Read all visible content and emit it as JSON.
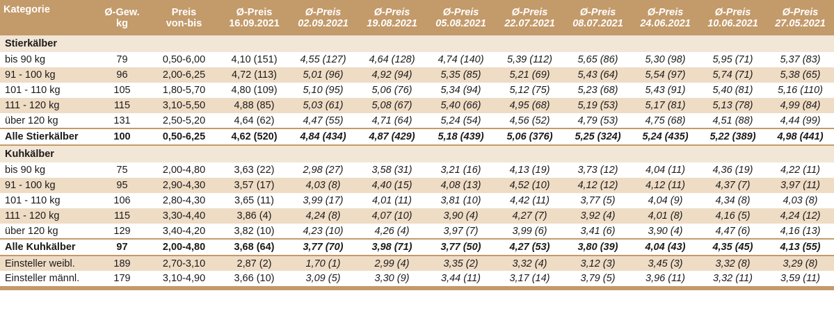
{
  "header": [
    {
      "line1": "Kategorie",
      "line2": "",
      "italic": false
    },
    {
      "line1": "Ø-Gew.",
      "line2": "kg",
      "italic": false
    },
    {
      "line1": "Preis",
      "line2": "von-bis",
      "italic": false
    },
    {
      "line1": "Ø-Preis",
      "line2": "16.09.2021",
      "italic": false
    },
    {
      "line1": "Ø-Preis",
      "line2": "02.09.2021",
      "italic": true
    },
    {
      "line1": "Ø-Preis",
      "line2": "19.08.2021",
      "italic": true
    },
    {
      "line1": "Ø-Preis",
      "line2": "05.08.2021",
      "italic": true
    },
    {
      "line1": "Ø-Preis",
      "line2": "22.07.2021",
      "italic": true
    },
    {
      "line1": "Ø-Preis",
      "line2": "08.07.2021",
      "italic": true
    },
    {
      "line1": "Ø-Preis",
      "line2": "24.06.2021",
      "italic": true
    },
    {
      "line1": "Ø-Preis",
      "line2": "10.06.2021",
      "italic": true
    },
    {
      "line1": "Ø-Preis",
      "line2": "27.05.2021",
      "italic": true
    }
  ],
  "rows": [
    {
      "type": "section",
      "label": "Stierkälber"
    },
    {
      "type": "data",
      "cells": [
        "bis 90 kg",
        "79",
        "0,50-6,00",
        "4,10 (151)",
        "4,55 (127)",
        "4,64 (128)",
        "4,74 (140)",
        "5,39 (112)",
        "5,65 (86)",
        "5,30 (98)",
        "5,95 (71)",
        "5,37 (83)"
      ]
    },
    {
      "type": "data",
      "cells": [
        "91 - 100 kg",
        "96",
        "2,00-6,25",
        "4,72 (113)",
        "5,01 (96)",
        "4,92 (94)",
        "5,35 (85)",
        "5,21 (69)",
        "5,43 (64)",
        "5,54 (97)",
        "5,74 (71)",
        "5,38 (65)"
      ]
    },
    {
      "type": "data",
      "cells": [
        "101 - 110 kg",
        "105",
        "1,80-5,70",
        "4,80 (109)",
        "5,10 (95)",
        "5,06 (76)",
        "5,34 (94)",
        "5,12 (75)",
        "5,23 (68)",
        "5,43 (91)",
        "5,40 (81)",
        "5,16 (110)"
      ]
    },
    {
      "type": "data",
      "cells": [
        "111 - 120 kg",
        "115",
        "3,10-5,50",
        "4,88 (85)",
        "5,03 (61)",
        "5,08 (67)",
        "5,40 (66)",
        "4,95 (68)",
        "5,19 (53)",
        "5,17 (81)",
        "5,13 (78)",
        "4,99 (84)"
      ]
    },
    {
      "type": "data",
      "cells": [
        "über 120 kg",
        "131",
        "2,50-5,20",
        "4,64 (62)",
        "4,47 (55)",
        "4,71 (64)",
        "5,24 (54)",
        "4,56 (52)",
        "4,79 (53)",
        "4,75 (68)",
        "4,51 (88)",
        "4,44 (99)"
      ]
    },
    {
      "type": "total",
      "cells": [
        "Alle Stierkälber",
        "100",
        "0,50-6,25",
        "4,62 (520)",
        "4,84 (434)",
        "4,87 (429)",
        "5,18 (439)",
        "5,06 (376)",
        "5,25 (324)",
        "5,24 (435)",
        "5,22 (389)",
        "4,98 (441)"
      ]
    },
    {
      "type": "section",
      "label": "Kuhkälber"
    },
    {
      "type": "data",
      "cells": [
        "bis 90 kg",
        "75",
        "2,00-4,80",
        "3,63 (22)",
        "2,98 (27)",
        "3,58 (31)",
        "3,21 (16)",
        "4,13 (19)",
        "3,73 (12)",
        "4,04 (11)",
        "4,36 (19)",
        "4,22 (11)"
      ]
    },
    {
      "type": "data",
      "cells": [
        "91 - 100 kg",
        "95",
        "2,90-4,30",
        "3,57 (17)",
        "4,03 (8)",
        "4,40 (15)",
        "4,08 (13)",
        "4,52 (10)",
        "4,12 (12)",
        "4,12 (11)",
        "4,37 (7)",
        "3,97 (11)"
      ]
    },
    {
      "type": "data",
      "cells": [
        "101 - 110 kg",
        "106",
        "2,80-4,30",
        "3,65 (11)",
        "3,99 (17)",
        "4,01 (11)",
        "3,81 (10)",
        "4,42 (11)",
        "3,77 (5)",
        "4,04 (9)",
        "4,34 (8)",
        "4,03 (8)"
      ]
    },
    {
      "type": "data",
      "cells": [
        "111 - 120 kg",
        "115",
        "3,30-4,40",
        "3,86 (4)",
        "4,24 (8)",
        "4,07 (10)",
        "3,90 (4)",
        "4,27 (7)",
        "3,92 (4)",
        "4,01 (8)",
        "4,16 (5)",
        "4,24 (12)"
      ]
    },
    {
      "type": "data",
      "cells": [
        "über 120 kg",
        "129",
        "3,40-4,20",
        "3,82 (10)",
        "4,23 (10)",
        "4,26 (4)",
        "3,97 (7)",
        "3,99 (6)",
        "3,41 (6)",
        "3,90 (4)",
        "4,47 (6)",
        "4,16 (13)"
      ]
    },
    {
      "type": "total",
      "cells": [
        "Alle Kuhkälber",
        "97",
        "2,00-4,80",
        "3,68 (64)",
        "3,77 (70)",
        "3,98 (71)",
        "3,77 (50)",
        "4,27 (53)",
        "3,80 (39)",
        "4,04 (43)",
        "4,35 (45)",
        "4,13 (55)"
      ]
    },
    {
      "type": "data",
      "cells": [
        "Einsteller weibl.",
        "189",
        "2,70-3,10",
        "2,87 (2)",
        "1,70 (1)",
        "2,99 (4)",
        "3,35 (2)",
        "3,32 (4)",
        "3,12 (3)",
        "3,45 (3)",
        "3,32 (8)",
        "3,29 (8)"
      ]
    },
    {
      "type": "data",
      "cells": [
        "Einsteller männl.",
        "179",
        "3,10-4,90",
        "3,66 (10)",
        "3,09 (5)",
        "3,30 (9)",
        "3,44 (11)",
        "3,17 (14)",
        "3,79 (5)",
        "3,96 (11)",
        "3,32 (11)",
        "3,59 (11)"
      ]
    }
  ],
  "colors": {
    "header": "#c39a6a",
    "section": "#f2e6d7",
    "stripe": "#efdcc5"
  }
}
